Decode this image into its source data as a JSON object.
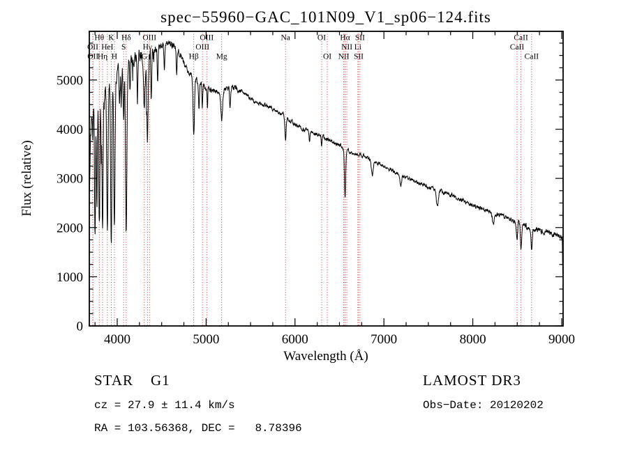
{
  "chart_data": {
    "type": "line",
    "title": "spec−55960−GAC_101N09_V1_sp06−124.fits",
    "xlabel": "Wavelength (Å)",
    "ylabel": "Flux (relative)",
    "xlim": [
      3686,
      9016
    ],
    "ylim": [
      0,
      5990
    ],
    "x_ticks": [
      4000,
      5000,
      6000,
      7000,
      8000,
      9000
    ],
    "y_ticks": [
      0,
      1000,
      2000,
      3000,
      4000,
      5000
    ],
    "x_minor_step": 250,
    "y_minor_step": 250,
    "grid": false,
    "line_color": "#000000",
    "marker_color": "#bb2222",
    "continuum": [
      [
        3686,
        2600
      ],
      [
        3698,
        3700
      ],
      [
        3712,
        4200
      ],
      [
        3726,
        4400
      ],
      [
        3745,
        4380
      ],
      [
        3765,
        4470
      ],
      [
        3785,
        4540
      ],
      [
        3805,
        4590
      ],
      [
        3830,
        4680
      ],
      [
        3860,
        4780
      ],
      [
        3890,
        4850
      ],
      [
        3920,
        4900
      ],
      [
        3950,
        4950
      ],
      [
        3980,
        5040
      ],
      [
        4010,
        5140
      ],
      [
        4050,
        5240
      ],
      [
        4100,
        5320
      ],
      [
        4150,
        5380
      ],
      [
        4200,
        5430
      ],
      [
        4250,
        5480
      ],
      [
        4300,
        5520
      ],
      [
        4350,
        5550
      ],
      [
        4400,
        5600
      ],
      [
        4450,
        5650
      ],
      [
        4500,
        5700
      ],
      [
        4550,
        5740
      ],
      [
        4600,
        5730
      ],
      [
        4650,
        5680
      ],
      [
        4700,
        5560
      ],
      [
        4750,
        5350
      ],
      [
        4800,
        5180
      ],
      [
        4850,
        5080
      ],
      [
        4900,
        4980
      ],
      [
        4950,
        4900
      ],
      [
        5000,
        4850
      ],
      [
        5050,
        4800
      ],
      [
        5100,
        4780
      ],
      [
        5150,
        4760
      ],
      [
        5200,
        4800
      ],
      [
        5250,
        4840
      ],
      [
        5300,
        4850
      ],
      [
        5350,
        4820
      ],
      [
        5400,
        4760
      ],
      [
        5450,
        4700
      ],
      [
        5500,
        4620
      ],
      [
        5550,
        4570
      ],
      [
        5600,
        4540
      ],
      [
        5650,
        4500
      ],
      [
        5700,
        4460
      ],
      [
        5750,
        4410
      ],
      [
        5800,
        4360
      ],
      [
        5850,
        4310
      ],
      [
        5900,
        4260
      ],
      [
        5950,
        4180
      ],
      [
        6000,
        4090
      ],
      [
        6100,
        4000
      ],
      [
        6200,
        3930
      ],
      [
        6300,
        3860
      ],
      [
        6400,
        3770
      ],
      [
        6500,
        3680
      ],
      [
        6600,
        3560
      ],
      [
        6700,
        3490
      ],
      [
        6800,
        3440
      ],
      [
        6900,
        3340
      ],
      [
        7000,
        3240
      ],
      [
        7100,
        3150
      ],
      [
        7200,
        3060
      ],
      [
        7300,
        2980
      ],
      [
        7400,
        2900
      ],
      [
        7500,
        2830
      ],
      [
        7600,
        2770
      ],
      [
        7700,
        2700
      ],
      [
        7800,
        2620
      ],
      [
        7900,
        2530
      ],
      [
        8000,
        2450
      ],
      [
        8100,
        2380
      ],
      [
        8200,
        2310
      ],
      [
        8300,
        2250
      ],
      [
        8400,
        2180
      ],
      [
        8500,
        2100
      ],
      [
        8600,
        2030
      ],
      [
        8700,
        1970
      ],
      [
        8800,
        1920
      ],
      [
        8900,
        1870
      ],
      [
        8950,
        1835
      ],
      [
        9000,
        1790
      ],
      [
        9006,
        1750
      ],
      [
        9016,
        620
      ]
    ],
    "absorption_features": [
      [
        3725,
        600,
        4
      ],
      [
        3750,
        2700,
        5
      ],
      [
        3771,
        2000,
        5
      ],
      [
        3798,
        2500,
        6
      ],
      [
        3820,
        900,
        4
      ],
      [
        3835,
        2800,
        6
      ],
      [
        3889,
        2950,
        7
      ],
      [
        3933,
        3150,
        7
      ],
      [
        3968,
        3000,
        7
      ],
      [
        4026,
        700,
        4
      ],
      [
        4045,
        900,
        4
      ],
      [
        4072,
        1000,
        5
      ],
      [
        4101,
        3300,
        8
      ],
      [
        4144,
        600,
        4
      ],
      [
        4227,
        900,
        5
      ],
      [
        4305,
        1100,
        9
      ],
      [
        4340,
        1800,
        8
      ],
      [
        4383,
        900,
        5
      ],
      [
        4455,
        650,
        5
      ],
      [
        4530,
        500,
        5
      ],
      [
        4668,
        500,
        5
      ],
      [
        4861,
        1150,
        8
      ],
      [
        4920,
        550,
        5
      ],
      [
        4957,
        450,
        4
      ],
      [
        5015,
        450,
        4
      ],
      [
        5175,
        570,
        10
      ],
      [
        5270,
        430,
        6
      ],
      [
        5893,
        500,
        7
      ],
      [
        6163,
        250,
        5
      ],
      [
        6300,
        200,
        5
      ],
      [
        6563,
        980,
        7
      ],
      [
        6870,
        320,
        10
      ],
      [
        7190,
        220,
        9
      ],
      [
        7600,
        340,
        12
      ],
      [
        8230,
        220,
        10
      ],
      [
        8498,
        400,
        6
      ],
      [
        8542,
        540,
        7
      ],
      [
        8662,
        480,
        7
      ]
    ],
    "noise": {
      "seed": 11,
      "step": 3,
      "smoothing": 0.5,
      "regions": [
        {
          "upto": 4400,
          "amp": 115
        },
        {
          "upto": 4800,
          "amp": 60
        },
        {
          "upto": 5400,
          "amp": 50
        },
        {
          "upto": 6600,
          "amp": 33
        },
        {
          "upto": 7600,
          "amp": 30
        },
        {
          "upto": 8450,
          "amp": 36
        },
        {
          "upto": 9020,
          "amp": 48
        }
      ],
      "blue_spike_prob": 0.05,
      "blue_spike_limit": 4420,
      "blue_spike_scale": 3
    },
    "spectral_line_markers": [
      {
        "wavelength": 3725,
        "label": "OII",
        "row": 2
      },
      {
        "wavelength": 3727,
        "label": "OII",
        "row": 3
      },
      {
        "wavelength": 3798,
        "label": "Hθ",
        "row": 1
      },
      {
        "wavelength": 3835,
        "label": "Hη",
        "row": 3
      },
      {
        "wavelength": 3889,
        "label": "HeI",
        "row": 2
      },
      {
        "wavelength": 3933,
        "label": "K",
        "row": 1
      },
      {
        "wavelength": 3968,
        "label": "H",
        "row": 3
      },
      {
        "wavelength": 4072,
        "label": "S",
        "row": 2
      },
      {
        "wavelength": 4101,
        "label": "Hδ",
        "row": 1
      },
      {
        "wavelength": 4305,
        "label": "G",
        "row": 3
      },
      {
        "wavelength": 4340,
        "label": "Hγ",
        "row": 2
      },
      {
        "wavelength": 4363,
        "label": "OIII",
        "row": 1
      },
      {
        "wavelength": 4861,
        "label": "Hβ",
        "row": 3
      },
      {
        "wavelength": 4959,
        "label": "OIII",
        "row": 2
      },
      {
        "wavelength": 5007,
        "label": "OIII",
        "row": 1
      },
      {
        "wavelength": 5175,
        "label": "Mg",
        "row": 3
      },
      {
        "wavelength": 5893,
        "label": "Na",
        "row": 1
      },
      {
        "wavelength": 6300,
        "label": "OI",
        "row": 1
      },
      {
        "wavelength": 6363,
        "label": "OI",
        "row": 3
      },
      {
        "wavelength": 6548,
        "label": "NII",
        "row": 3
      },
      {
        "wavelength": 6563,
        "label": "Hα",
        "row": 1
      },
      {
        "wavelength": 6583,
        "label": "NII",
        "row": 2
      },
      {
        "wavelength": 6707,
        "label": "Li",
        "row": 2
      },
      {
        "wavelength": 6716,
        "label": "SII",
        "row": 3
      },
      {
        "wavelength": 6731,
        "label": "SII",
        "row": 1
      },
      {
        "wavelength": 8498,
        "label": "CaII",
        "row": 2
      },
      {
        "wavelength": 8542,
        "label": "CaII",
        "row": 1
      },
      {
        "wavelength": 8662,
        "label": "CaII",
        "row": 3
      }
    ]
  },
  "footer": {
    "object_class": "STAR    G1",
    "cz": "cz = 27.9 ± 11.4 km/s",
    "coords": "RA = 103.56368, DEC =   8.78396",
    "survey": "LAMOST DR3",
    "obs_date": "Obs−Date: 20120202"
  }
}
